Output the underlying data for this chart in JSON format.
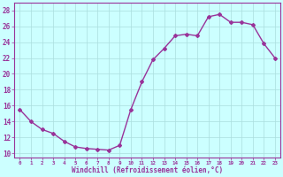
{
  "x": [
    0,
    1,
    2,
    3,
    4,
    5,
    6,
    7,
    8,
    9,
    10,
    11,
    12,
    13,
    14,
    15,
    16,
    17,
    18,
    19,
    20,
    21,
    22,
    23
  ],
  "y": [
    15.5,
    14.0,
    13.0,
    12.5,
    11.5,
    10.8,
    10.6,
    10.5,
    10.4,
    11.0,
    15.5,
    19.0,
    21.8,
    23.2,
    24.8,
    25.0,
    24.8,
    27.2,
    27.5,
    26.5,
    26.5,
    26.2,
    23.8,
    22.0
  ],
  "color": "#993399",
  "bg_color": "#ccffff",
  "grid_color": "#aadddd",
  "ylim": [
    9.5,
    29.0
  ],
  "yticks": [
    10,
    12,
    14,
    16,
    18,
    20,
    22,
    24,
    26,
    28
  ],
  "xticks": [
    0,
    1,
    2,
    3,
    4,
    5,
    6,
    7,
    8,
    9,
    10,
    11,
    12,
    13,
    14,
    15,
    16,
    17,
    18,
    19,
    20,
    21,
    22,
    23
  ],
  "xlabel": "Windchill (Refroidissement éolien,°C)",
  "marker": "D",
  "markersize": 2.0,
  "linewidth": 1.0
}
